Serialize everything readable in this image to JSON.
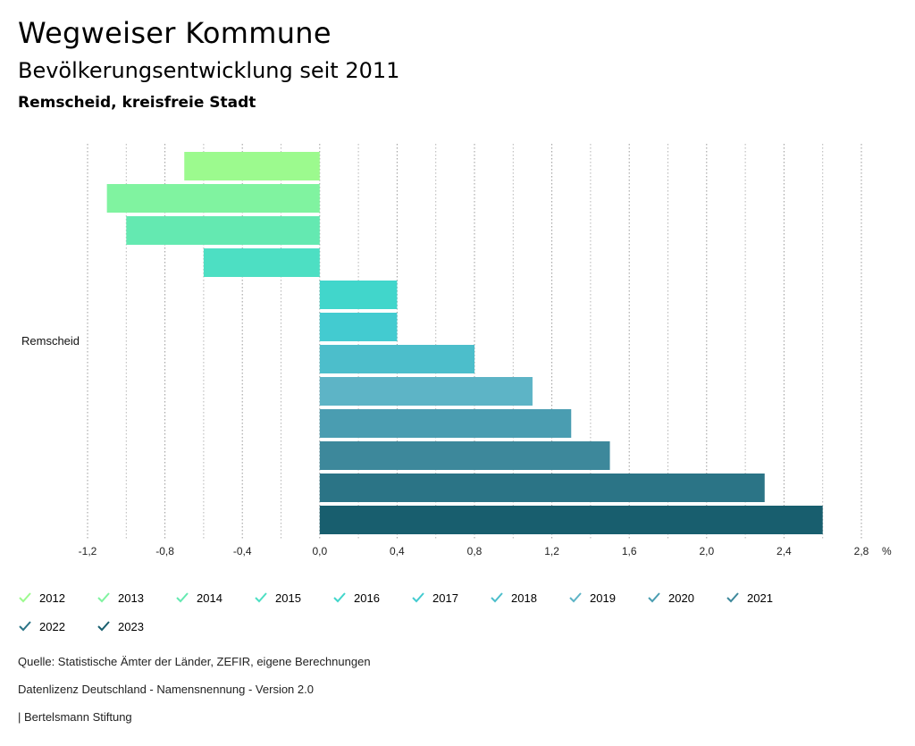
{
  "header": {
    "title": "Wegweiser Kommune",
    "subtitle": "Bevölkerungsentwicklung seit 2011",
    "region": "Remscheid, kreisfreie Stadt"
  },
  "chart_data": {
    "type": "bar",
    "orientation": "horizontal",
    "category": "Remscheid",
    "unit": "%",
    "xlim": [
      -1.2,
      2.8
    ],
    "xticks": [
      -1.2,
      -0.8,
      -0.4,
      0.0,
      0.4,
      0.8,
      1.2,
      1.6,
      2.0,
      2.4,
      2.8
    ],
    "xtick_labels": [
      "-1,2",
      "-0,8",
      "-0,4",
      "0,0",
      "0,4",
      "0,8",
      "1,2",
      "1,6",
      "2,0",
      "2,4",
      "2,8"
    ],
    "grid": "vertical-dotted",
    "series": [
      {
        "name": "2012",
        "value": -0.7,
        "color": "#9cfa8e"
      },
      {
        "name": "2013",
        "value": -1.1,
        "color": "#80f3a0"
      },
      {
        "name": "2014",
        "value": -1.0,
        "color": "#64e9b1"
      },
      {
        "name": "2015",
        "value": -0.6,
        "color": "#4ddfc3"
      },
      {
        "name": "2016",
        "value": 0.4,
        "color": "#41d6cb"
      },
      {
        "name": "2017",
        "value": 0.4,
        "color": "#43cbd0"
      },
      {
        "name": "2018",
        "value": 0.8,
        "color": "#4cbecb"
      },
      {
        "name": "2019",
        "value": 1.1,
        "color": "#5db4c6"
      },
      {
        "name": "2020",
        "value": 1.3,
        "color": "#4a9db1"
      },
      {
        "name": "2021",
        "value": 1.5,
        "color": "#3d889b"
      },
      {
        "name": "2022",
        "value": 2.3,
        "color": "#2b7486"
      },
      {
        "name": "2023",
        "value": 2.6,
        "color": "#185e6e"
      }
    ]
  },
  "footer": {
    "source": "Quelle: Statistische Ämter der Länder, ZEFIR, eigene Berechnungen",
    "license": "Datenlizenz Deutschland - Namensnennung - Version 2.0",
    "publisher": "| Bertelsmann Stiftung"
  }
}
